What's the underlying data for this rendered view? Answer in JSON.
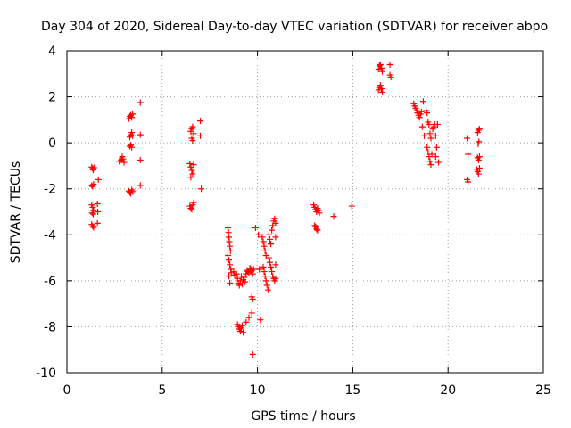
{
  "chart_data": {
    "type": "scatter",
    "title": "Day 304 of 2020, Sidereal Day-to-day VTEC variation (SDTVAR) for receiver abpo",
    "xlabel": "GPS time / hours",
    "ylabel": "SDTVAR / TECUs",
    "xlim": [
      0,
      25
    ],
    "ylim": [
      -10,
      4
    ],
    "xticks": [
      0,
      5,
      10,
      15,
      20,
      25
    ],
    "xtick_labels": [
      "0",
      "5",
      "10",
      "15",
      "20",
      "25"
    ],
    "yticks": [
      -10,
      -8,
      -6,
      -4,
      -2,
      0,
      2,
      4
    ],
    "ytick_labels": [
      "-10",
      "-8",
      "-6",
      "-4",
      "-2",
      "0",
      "2",
      "4"
    ],
    "grid": true,
    "marker": "+",
    "marker_color": "#ff0000",
    "series": [
      {
        "name": "SDTVAR",
        "points": [
          [
            1.3,
            -1.05
          ],
          [
            1.35,
            -1.12
          ],
          [
            1.38,
            -1.18
          ],
          [
            1.42,
            -1.08
          ],
          [
            1.3,
            -1.85
          ],
          [
            1.35,
            -1.9
          ],
          [
            1.4,
            -1.8
          ],
          [
            1.65,
            -1.6
          ],
          [
            1.3,
            -2.7
          ],
          [
            1.35,
            -2.8
          ],
          [
            1.4,
            -2.95
          ],
          [
            1.32,
            -3.05
          ],
          [
            1.38,
            -3.1
          ],
          [
            1.6,
            -2.65
          ],
          [
            1.62,
            -3.0
          ],
          [
            1.3,
            -3.55
          ],
          [
            1.35,
            -3.62
          ],
          [
            1.4,
            -3.68
          ],
          [
            1.6,
            -3.5
          ],
          [
            2.75,
            -0.8
          ],
          [
            2.85,
            -0.75
          ],
          [
            2.95,
            -0.7
          ],
          [
            3.0,
            -0.85
          ],
          [
            2.9,
            -0.6
          ],
          [
            3.25,
            1.05
          ],
          [
            3.3,
            1.15
          ],
          [
            3.35,
            1.2
          ],
          [
            3.4,
            1.1
          ],
          [
            3.45,
            1.25
          ],
          [
            3.3,
            0.25
          ],
          [
            3.35,
            0.35
          ],
          [
            3.4,
            0.45
          ],
          [
            3.45,
            0.3
          ],
          [
            3.3,
            -0.15
          ],
          [
            3.35,
            -0.1
          ],
          [
            3.4,
            -0.2
          ],
          [
            3.25,
            -2.1
          ],
          [
            3.3,
            -2.15
          ],
          [
            3.35,
            -2.2
          ],
          [
            3.4,
            -2.05
          ],
          [
            3.45,
            -2.12
          ],
          [
            3.85,
            1.75
          ],
          [
            3.85,
            0.35
          ],
          [
            3.85,
            -0.75
          ],
          [
            3.85,
            -1.85
          ],
          [
            6.5,
            0.5
          ],
          [
            6.55,
            0.6
          ],
          [
            6.6,
            0.7
          ],
          [
            6.65,
            0.4
          ],
          [
            6.55,
            0.2
          ],
          [
            6.6,
            0.1
          ],
          [
            6.45,
            -0.9
          ],
          [
            6.5,
            -1.05
          ],
          [
            6.55,
            -1.2
          ],
          [
            6.6,
            -1.35
          ],
          [
            6.5,
            -1.5
          ],
          [
            6.65,
            -0.95
          ],
          [
            6.45,
            -2.75
          ],
          [
            6.5,
            -2.85
          ],
          [
            6.55,
            -2.9
          ],
          [
            6.6,
            -2.7
          ],
          [
            6.65,
            -2.6
          ],
          [
            7.0,
            0.95
          ],
          [
            7.0,
            0.3
          ],
          [
            7.05,
            -2.0
          ],
          [
            8.45,
            -3.7
          ],
          [
            8.48,
            -3.9
          ],
          [
            8.5,
            -4.1
          ],
          [
            8.52,
            -4.3
          ],
          [
            8.55,
            -4.5
          ],
          [
            8.58,
            -4.7
          ],
          [
            8.45,
            -4.9
          ],
          [
            8.5,
            -5.1
          ],
          [
            8.55,
            -5.3
          ],
          [
            8.6,
            -5.5
          ],
          [
            8.62,
            -5.65
          ],
          [
            8.5,
            -5.8
          ],
          [
            8.55,
            -6.1
          ],
          [
            8.75,
            -5.6
          ],
          [
            8.8,
            -5.75
          ],
          [
            8.9,
            -5.7
          ],
          [
            8.95,
            -5.9
          ],
          [
            9.0,
            -6.1
          ],
          [
            9.05,
            -6.2
          ],
          [
            9.1,
            -6.0
          ],
          [
            9.15,
            -5.8
          ],
          [
            9.2,
            -6.15
          ],
          [
            9.25,
            -5.95
          ],
          [
            9.3,
            -5.85
          ],
          [
            9.35,
            -6.05
          ],
          [
            9.4,
            -5.7
          ],
          [
            9.45,
            -5.55
          ],
          [
            9.5,
            -5.6
          ],
          [
            9.55,
            -5.65
          ],
          [
            9.6,
            -5.45
          ],
          [
            9.65,
            -5.5
          ],
          [
            9.7,
            -5.55
          ],
          [
            9.75,
            -5.7
          ],
          [
            9.8,
            -5.5
          ],
          [
            8.95,
            -7.9
          ],
          [
            9.0,
            -8.0
          ],
          [
            9.05,
            -8.1
          ],
          [
            9.1,
            -8.2
          ],
          [
            9.15,
            -8.05
          ],
          [
            9.2,
            -7.95
          ],
          [
            9.25,
            -8.25
          ],
          [
            9.4,
            -7.8
          ],
          [
            9.55,
            -7.6
          ],
          [
            9.7,
            -7.4
          ],
          [
            9.7,
            -6.7
          ],
          [
            9.75,
            -6.8
          ],
          [
            9.75,
            -9.2
          ],
          [
            9.9,
            -3.7
          ],
          [
            10.05,
            -4.0
          ],
          [
            10.1,
            -5.5
          ],
          [
            10.15,
            -7.7
          ],
          [
            10.25,
            -4.1
          ],
          [
            10.3,
            -4.3
          ],
          [
            10.35,
            -4.5
          ],
          [
            10.4,
            -4.7
          ],
          [
            10.45,
            -4.9
          ],
          [
            10.3,
            -5.4
          ],
          [
            10.35,
            -5.6
          ],
          [
            10.4,
            -5.8
          ],
          [
            10.45,
            -6.0
          ],
          [
            10.5,
            -6.2
          ],
          [
            10.55,
            -6.4
          ],
          [
            10.6,
            -4.0
          ],
          [
            10.65,
            -4.2
          ],
          [
            10.7,
            -4.4
          ],
          [
            10.75,
            -3.8
          ],
          [
            10.8,
            -3.6
          ],
          [
            10.85,
            -3.4
          ],
          [
            10.9,
            -3.3
          ],
          [
            10.6,
            -5.0
          ],
          [
            10.65,
            -5.2
          ],
          [
            10.7,
            -5.4
          ],
          [
            10.75,
            -5.6
          ],
          [
            10.8,
            -5.8
          ],
          [
            10.85,
            -5.9
          ],
          [
            10.9,
            -6.0
          ],
          [
            10.95,
            -3.5
          ],
          [
            10.95,
            -4.1
          ],
          [
            10.95,
            -5.3
          ],
          [
            10.95,
            -5.9
          ],
          [
            12.95,
            -2.7
          ],
          [
            13.0,
            -2.8
          ],
          [
            13.05,
            -2.9
          ],
          [
            13.1,
            -3.0
          ],
          [
            13.15,
            -2.85
          ],
          [
            13.2,
            -2.95
          ],
          [
            13.25,
            -3.05
          ],
          [
            13.0,
            -3.6
          ],
          [
            13.05,
            -3.65
          ],
          [
            13.1,
            -3.75
          ],
          [
            13.15,
            -3.8
          ],
          [
            14.0,
            -3.2
          ],
          [
            14.95,
            -2.75
          ],
          [
            16.35,
            3.2
          ],
          [
            16.4,
            3.35
          ],
          [
            16.45,
            3.4
          ],
          [
            16.5,
            3.25
          ],
          [
            16.55,
            3.1
          ],
          [
            16.35,
            2.3
          ],
          [
            16.4,
            2.4
          ],
          [
            16.45,
            2.5
          ],
          [
            16.5,
            2.35
          ],
          [
            16.55,
            2.2
          ],
          [
            16.95,
            3.4
          ],
          [
            16.95,
            2.95
          ],
          [
            17.0,
            2.85
          ],
          [
            18.2,
            1.7
          ],
          [
            18.25,
            1.6
          ],
          [
            18.3,
            1.5
          ],
          [
            18.35,
            1.4
          ],
          [
            18.4,
            1.3
          ],
          [
            18.45,
            1.2
          ],
          [
            18.5,
            1.1
          ],
          [
            18.55,
            1.25
          ],
          [
            18.6,
            1.35
          ],
          [
            18.65,
            0.7
          ],
          [
            18.7,
            1.8
          ],
          [
            18.75,
            0.3
          ],
          [
            18.85,
            1.4
          ],
          [
            18.9,
            1.3
          ],
          [
            18.95,
            0.9
          ],
          [
            19.0,
            0.8
          ],
          [
            19.05,
            0.4
          ],
          [
            19.1,
            0.2
          ],
          [
            18.9,
            -0.2
          ],
          [
            18.95,
            -0.4
          ],
          [
            19.0,
            -0.6
          ],
          [
            19.05,
            -0.8
          ],
          [
            19.1,
            -0.95
          ],
          [
            19.15,
            -0.5
          ],
          [
            19.2,
            0.6
          ],
          [
            19.25,
            0.7
          ],
          [
            19.3,
            0.8
          ],
          [
            19.35,
            -0.6
          ],
          [
            19.4,
            -0.2
          ],
          [
            19.45,
            0.8
          ],
          [
            19.5,
            -0.85
          ],
          [
            19.35,
            0.3
          ],
          [
            21.0,
            0.2
          ],
          [
            21.05,
            -0.5
          ],
          [
            21.0,
            -1.6
          ],
          [
            21.05,
            -1.7
          ],
          [
            21.55,
            0.45
          ],
          [
            21.6,
            0.55
          ],
          [
            21.65,
            0.6
          ],
          [
            21.58,
            -0.05
          ],
          [
            21.62,
            0.05
          ],
          [
            21.55,
            -0.65
          ],
          [
            21.6,
            -0.75
          ],
          [
            21.65,
            -0.6
          ],
          [
            21.5,
            -1.15
          ],
          [
            21.55,
            -1.25
          ],
          [
            21.6,
            -1.35
          ],
          [
            21.65,
            -1.1
          ]
        ]
      }
    ]
  }
}
